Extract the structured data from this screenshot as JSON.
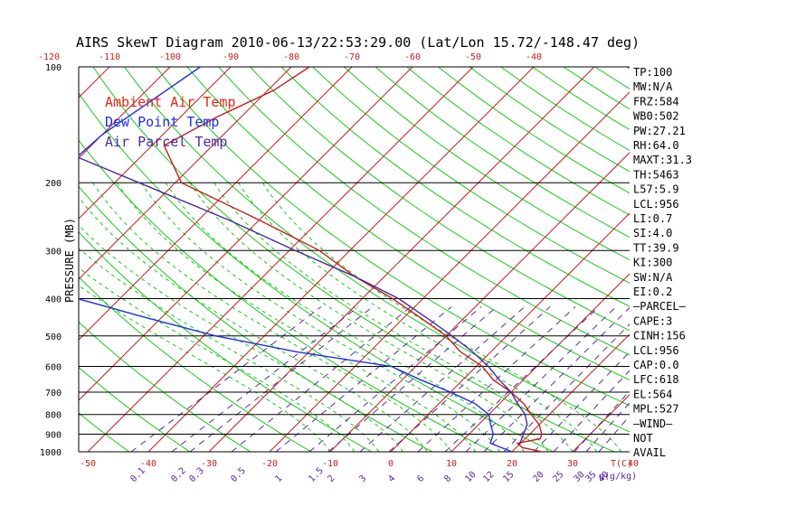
{
  "chart_data": {
    "type": "line",
    "title": "AIRS SkewT Diagram 2010-06-13/22:53:29.00 (Lat/Lon 15.72/-148.47 deg)",
    "ylabel": "PRESSURE (MB)",
    "xlabel_bottom_unit": "T(C)",
    "mixing_ratio_unit": "g(g/kg)",
    "top_ticks": [
      -120,
      -110,
      -100,
      -90,
      -80,
      -70,
      -60,
      -50,
      -40
    ],
    "bottom_ticks": [
      -50,
      -40,
      -30,
      -20,
      -10,
      0,
      10,
      20,
      30,
      40
    ],
    "pressure_ticks": [
      100,
      200,
      300,
      400,
      500,
      600,
      700,
      800,
      900,
      1000
    ],
    "mixing_ratio_labels": [
      "0.1",
      "0.2",
      "0.3",
      "0.5",
      "1",
      "1.5",
      "2",
      "3",
      "4",
      "6",
      "8",
      "10",
      "12",
      "15",
      "20",
      "25",
      "30",
      "35",
      "40"
    ],
    "legend": [
      {
        "name": "Ambient Air Temp",
        "color": "#e8261a"
      },
      {
        "name": "Dew Point Temp",
        "color": "#1f2fe0"
      },
      {
        "name": "Air Parcel Temp",
        "color": "#4a2a9a"
      }
    ],
    "series": [
      {
        "name": "Ambient Air Temp",
        "color": "#c41e1e",
        "points": [
          [
            100,
            -77
          ],
          [
            115,
            -79
          ],
          [
            135,
            -84
          ],
          [
            160,
            -88
          ],
          [
            200,
            -79
          ],
          [
            250,
            -60
          ],
          [
            300,
            -45
          ],
          [
            350,
            -35
          ],
          [
            400,
            -25
          ],
          [
            450,
            -17
          ],
          [
            500,
            -10
          ],
          [
            550,
            -5
          ],
          [
            600,
            1
          ],
          [
            650,
            5
          ],
          [
            700,
            10
          ],
          [
            750,
            14
          ],
          [
            800,
            17
          ],
          [
            850,
            20
          ],
          [
            900,
            22
          ],
          [
            925,
            22.5
          ],
          [
            950,
            19.5
          ],
          [
            975,
            21
          ],
          [
            1000,
            25
          ]
        ]
      },
      {
        "name": "Dew Point Temp",
        "color": "#1f2fe0",
        "points": [
          [
            100,
            -95
          ],
          [
            150,
            -100
          ],
          [
            200,
            -101
          ],
          [
            250,
            -98
          ],
          [
            300,
            -95
          ],
          [
            350,
            -86
          ],
          [
            400,
            -77
          ],
          [
            450,
            -62
          ],
          [
            500,
            -48
          ],
          [
            550,
            -32
          ],
          [
            600,
            -14
          ],
          [
            650,
            -7
          ],
          [
            700,
            0
          ],
          [
            750,
            6
          ],
          [
            800,
            10
          ],
          [
            850,
            12
          ],
          [
            900,
            14
          ],
          [
            950,
            15
          ],
          [
            1000,
            20
          ]
        ]
      },
      {
        "name": "Air Parcel Temp",
        "color": "#4a2a9a",
        "points": [
          [
            100,
            -138
          ],
          [
            125,
            -126
          ],
          [
            150,
            -113
          ],
          [
            200,
            -86
          ],
          [
            250,
            -65
          ],
          [
            300,
            -49
          ],
          [
            350,
            -35
          ],
          [
            400,
            -24
          ],
          [
            450,
            -16
          ],
          [
            500,
            -9
          ],
          [
            550,
            -3
          ],
          [
            600,
            2
          ],
          [
            650,
            6
          ],
          [
            700,
            10
          ],
          [
            750,
            13
          ],
          [
            800,
            16
          ],
          [
            850,
            18
          ],
          [
            900,
            19
          ],
          [
            956,
            20
          ]
        ]
      }
    ],
    "wind_barbs": false
  },
  "indices": [
    "TP:100",
    "MW:N/A",
    "FRZ:584",
    "WB0:502",
    "PW:27.21",
    "RH:64.0",
    "MAXT:31.3",
    "TH:5463",
    "L57:5.9",
    "LCL:956",
    "LI:0.7",
    "SI:4.0",
    "TT:39.9",
    "KI:300",
    "SW:N/A",
    "EI:0.2",
    "—PARCEL—",
    "CAPE:3",
    "CINH:156",
    "LCL:956",
    "CAP:0.0",
    "LFC:618",
    "EL:564",
    "MPL:527",
    "—WIND—",
    "NOT",
    "AVAIL"
  ]
}
